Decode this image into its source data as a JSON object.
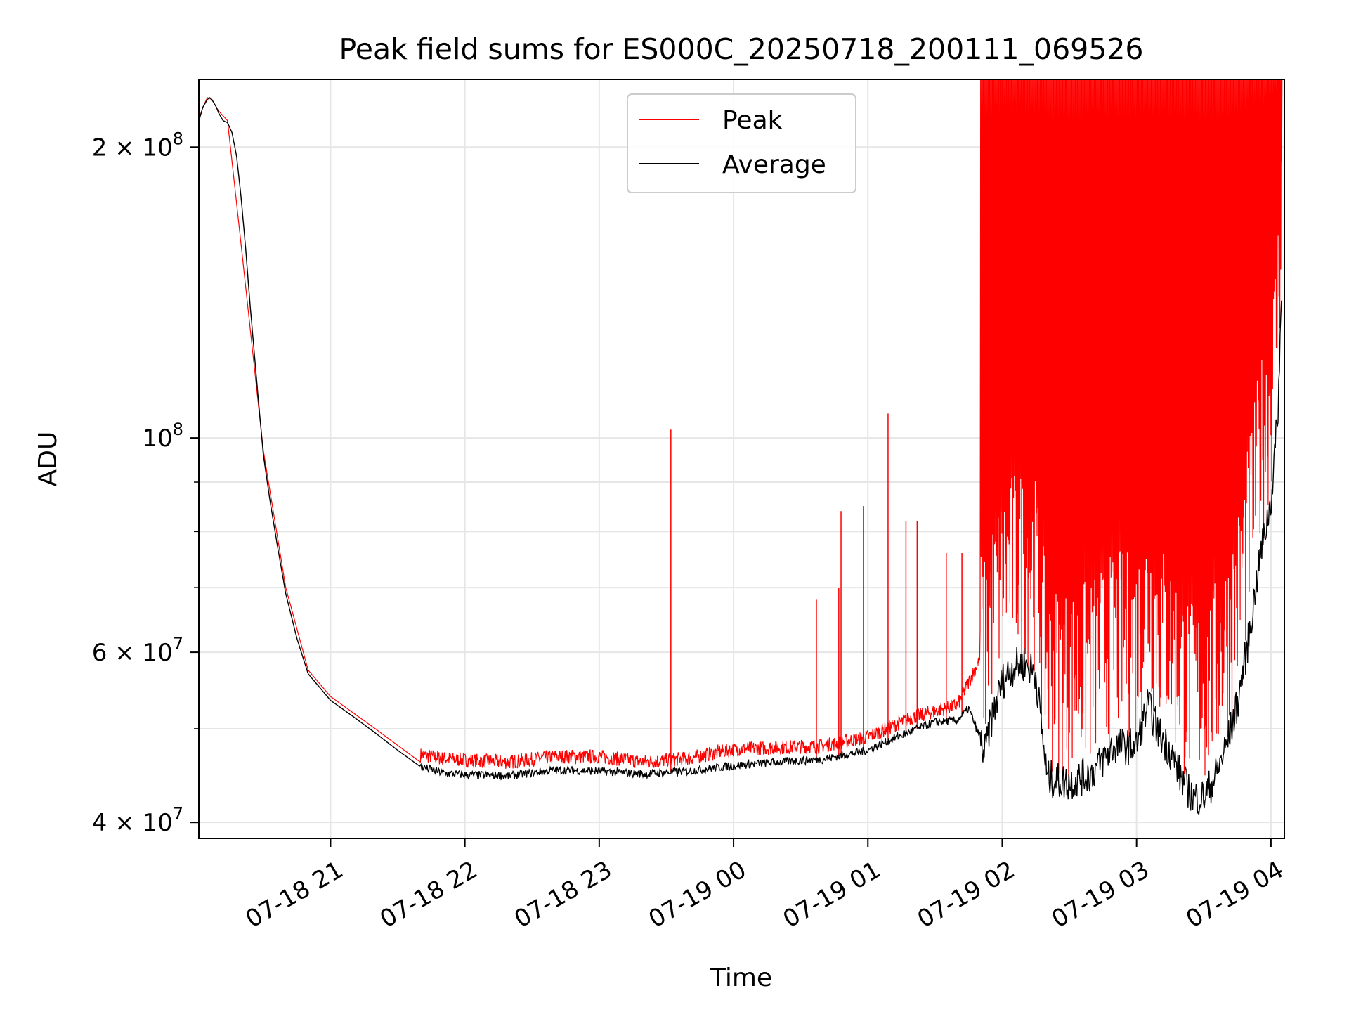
{
  "chart_data": {
    "type": "line",
    "title": "Peak field sums for ES000C_20250718_200111_069526",
    "xlabel": "Time",
    "ylabel": "ADU",
    "yscale": "log",
    "ylim": [
      38500000,
      235000000
    ],
    "xlim": [
      "2025-07-18 20:01:11",
      "2025-07-19 04:06:00"
    ],
    "grid": true,
    "legend_position": "top-center",
    "x_ticks": [
      {
        "label": "07-18 21",
        "value": "2025-07-18 21:00"
      },
      {
        "label": "07-18 22",
        "value": "2025-07-18 22:00"
      },
      {
        "label": "07-18 23",
        "value": "2025-07-18 23:00"
      },
      {
        "label": "07-19 00",
        "value": "2025-07-19 00:00"
      },
      {
        "label": "07-19 01",
        "value": "2025-07-19 01:00"
      },
      {
        "label": "07-19 02",
        "value": "2025-07-19 02:00"
      },
      {
        "label": "07-19 03",
        "value": "2025-07-19 03:00"
      },
      {
        "label": "07-19 04",
        "value": "2025-07-19 04:00"
      }
    ],
    "y_major_ticks": [
      {
        "value": 40000000,
        "mantissa": "4 × 10",
        "exp": "7"
      },
      {
        "value": 60000000,
        "mantissa": "6 × 10",
        "exp": "7"
      },
      {
        "value": 100000000,
        "mantissa": "10",
        "exp": "8"
      },
      {
        "value": 200000000,
        "mantissa": "2 × 10",
        "exp": "8"
      }
    ],
    "y_minor_ticks": [
      50000000,
      70000000,
      80000000,
      90000000
    ],
    "series": [
      {
        "name": "Average",
        "color": "#000000",
        "x": [
          "2025-07-18 20:01",
          "2025-07-18 20:02",
          "2025-07-18 20:03",
          "2025-07-18 20:04",
          "2025-07-18 20:05",
          "2025-07-18 20:06",
          "2025-07-18 20:07",
          "2025-07-18 20:08",
          "2025-07-18 20:09",
          "2025-07-18 20:10",
          "2025-07-18 20:11",
          "2025-07-18 20:12",
          "2025-07-18 20:14",
          "2025-07-18 20:16",
          "2025-07-18 20:18",
          "2025-07-18 20:20",
          "2025-07-18 20:22",
          "2025-07-18 20:24",
          "2025-07-18 20:26",
          "2025-07-18 20:28",
          "2025-07-18 20:30",
          "2025-07-18 20:33",
          "2025-07-18 20:36",
          "2025-07-18 20:40",
          "2025-07-18 20:45",
          "2025-07-18 20:50",
          "2025-07-18 21:00",
          "2025-07-18 21:10",
          "2025-07-18 21:20",
          "2025-07-18 21:30",
          "2025-07-18 21:40",
          "2025-07-18 21:50",
          "2025-07-18 22:00",
          "2025-07-18 22:20",
          "2025-07-18 22:40",
          "2025-07-18 23:00",
          "2025-07-18 23:20",
          "2025-07-18 23:40",
          "2025-07-19 00:00",
          "2025-07-19 00:20",
          "2025-07-19 00:40",
          "2025-07-19 01:00",
          "2025-07-19 01:10",
          "2025-07-19 01:20",
          "2025-07-19 01:30",
          "2025-07-19 01:40",
          "2025-07-19 01:45",
          "2025-07-19 01:50",
          "2025-07-19 01:52",
          "2025-07-19 01:55",
          "2025-07-19 02:00",
          "2025-07-19 02:05",
          "2025-07-19 02:10",
          "2025-07-19 02:15",
          "2025-07-19 02:20",
          "2025-07-19 02:30",
          "2025-07-19 02:40",
          "2025-07-19 02:50",
          "2025-07-19 03:00",
          "2025-07-19 03:05",
          "2025-07-19 03:10",
          "2025-07-19 03:15",
          "2025-07-19 03:20",
          "2025-07-19 03:25",
          "2025-07-19 03:30",
          "2025-07-19 03:35",
          "2025-07-19 03:40",
          "2025-07-19 03:45",
          "2025-07-19 03:50",
          "2025-07-19 03:55",
          "2025-07-19 04:00",
          "2025-07-19 04:03",
          "2025-07-19 04:05"
        ],
        "values": [
          212000000,
          216000000,
          220000000,
          222000000,
          224000000,
          225000000,
          224000000,
          222000000,
          220000000,
          217000000,
          215000000,
          213000000,
          212000000,
          207000000,
          196000000,
          178000000,
          158000000,
          138000000,
          122000000,
          108000000,
          96000000,
          86000000,
          78000000,
          69000000,
          62000000,
          57000000,
          53500000,
          51500000,
          49500000,
          47500000,
          45700000,
          45000000,
          44800000,
          44700000,
          45300000,
          45200000,
          44900000,
          45200000,
          45800000,
          46200000,
          46500000,
          47500000,
          48700000,
          49800000,
          50800000,
          51000000,
          52500000,
          49000000,
          47000000,
          51000000,
          56000000,
          58000000,
          58500000,
          57000000,
          44500000,
          44000000,
          45000000,
          48000000,
          48000000,
          53000000,
          49500000,
          47500000,
          44500000,
          42500000,
          42500000,
          44500000,
          48000000,
          53000000,
          62000000,
          75000000,
          86000000,
          105000000,
          145000000
        ]
      },
      {
        "name": "Peak",
        "color": "#ff0000",
        "x": [
          "2025-07-18 20:01",
          "2025-07-18 20:03",
          "2025-07-18 20:05",
          "2025-07-18 20:07",
          "2025-07-18 20:10",
          "2025-07-18 20:14",
          "2025-07-18 20:20",
          "2025-07-18 20:30",
          "2025-07-18 20:40",
          "2025-07-18 20:50",
          "2025-07-18 21:00",
          "2025-07-18 21:20",
          "2025-07-18 21:40",
          "2025-07-18 21:50",
          "2025-07-18 22:00",
          "2025-07-18 22:20",
          "2025-07-18 22:40",
          "2025-07-18 23:00",
          "2025-07-18 23:20",
          "2025-07-18 23:40",
          "2025-07-19 00:00",
          "2025-07-19 00:20",
          "2025-07-19 00:40",
          "2025-07-19 01:00",
          "2025-07-19 01:20",
          "2025-07-19 01:40",
          "2025-07-19 01:50",
          "2025-07-19 01:55",
          "2025-07-19 02:05",
          "2025-07-19 02:10",
          "2025-07-19 02:20",
          "2025-07-19 02:40",
          "2025-07-19 03:00",
          "2025-07-19 03:20",
          "2025-07-19 03:30",
          "2025-07-19 03:40",
          "2025-07-19 03:50",
          "2025-07-19 04:00",
          "2025-07-19 04:05"
        ],
        "values": [
          213000000,
          220000000,
          225000000,
          224000000,
          218000000,
          213000000,
          159000000,
          97000000,
          70000000,
          57500000,
          54000000,
          50000000,
          46200000,
          45800000,
          45600000,
          45400000,
          46000000,
          46000000,
          45400000,
          45800000,
          46800000,
          47000000,
          47200000,
          48200000,
          50500000,
          52000000,
          58000000,
          75000000,
          150000000,
          235000000,
          235000000,
          235000000,
          235000000,
          235000000,
          235000000,
          235000000,
          235000000,
          235000000,
          235000000
        ]
      }
    ],
    "peak_spikes": [
      {
        "x": "2025-07-18 23:32",
        "value": 102000000
      },
      {
        "x": "2025-07-19 00:37",
        "value": 68000000
      },
      {
        "x": "2025-07-19 00:47",
        "value": 70000000
      },
      {
        "x": "2025-07-19 00:48",
        "value": 84000000
      },
      {
        "x": "2025-07-19 00:58",
        "value": 85000000
      },
      {
        "x": "2025-07-19 01:09",
        "value": 106000000
      },
      {
        "x": "2025-07-19 01:17",
        "value": 82000000
      },
      {
        "x": "2025-07-19 01:22",
        "value": 82000000
      },
      {
        "x": "2025-07-19 01:35",
        "value": 76000000
      },
      {
        "x": "2025-07-19 01:42",
        "value": 76000000
      }
    ]
  },
  "legend": {
    "peak_label": "Peak",
    "average_label": "Average"
  }
}
